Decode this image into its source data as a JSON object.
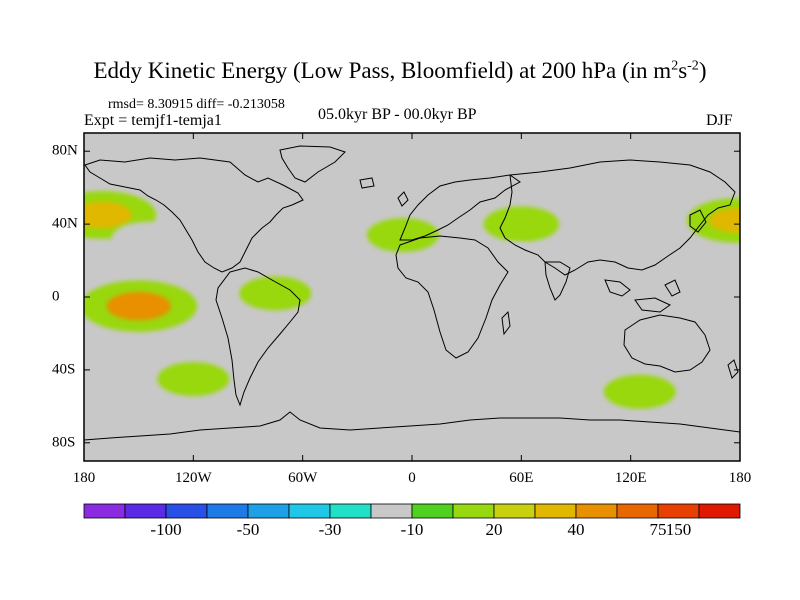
{
  "figure": {
    "title_main": "Eddy Kinetic Energy (Low Pass, Bloomfield) at 200 hPa (in m",
    "title_sup1": "2",
    "title_mid": "s",
    "title_sup2": "-2",
    "title_end": ")",
    "stats": "rmsd= 8.30915 diff= -0.213058",
    "experiment": "Expt = temjf1-temja1",
    "period": "05.0kyr BP - 00.0kyr BP",
    "season": "DJF"
  },
  "chart_data": {
    "type": "heatmap",
    "projection": "cylindrical-equidistant",
    "x_ticks": [
      "180",
      "120W",
      "60W",
      "0",
      "60E",
      "120E",
      "180"
    ],
    "y_ticks": [
      "80N",
      "40N",
      "0",
      "40S",
      "80S"
    ],
    "lon_range": [
      -180,
      180
    ],
    "lat_range": [
      -90,
      90
    ],
    "colorbar": {
      "colors": [
        "#8a2be2",
        "#5a2ae6",
        "#2850e6",
        "#1e7ae6",
        "#1ea0e6",
        "#1ec8e6",
        "#20e0c8",
        "#c8c8c8",
        "#50d020",
        "#98d810",
        "#c8d010",
        "#e0b800",
        "#e89000",
        "#e86800",
        "#e84000",
        "#e01800"
      ],
      "tick_labels": [
        "-100",
        "-50",
        "-30",
        "-10",
        "20",
        "40",
        "75",
        "150"
      ]
    },
    "anomalies": [
      {
        "name": "north-pacific-east-blob",
        "lon": 178,
        "lat": 42,
        "value": 35
      },
      {
        "name": "north-pacific-west-blob",
        "lon": -170,
        "lat": 45,
        "value": 40
      },
      {
        "name": "north-pacific-negative",
        "lon": -145,
        "lat": 32,
        "value": -20
      },
      {
        "name": "tropical-pacific-positive",
        "lon": -150,
        "lat": -5,
        "value": 45
      },
      {
        "name": "south-pacific-negative",
        "lon": -125,
        "lat": -30,
        "value": -12
      },
      {
        "name": "south-pacific-positive",
        "lon": -120,
        "lat": -45,
        "value": 20
      },
      {
        "name": "south-america-positive",
        "lon": -75,
        "lat": 2,
        "value": 20
      },
      {
        "name": "north-atlantic-negative",
        "lon": -20,
        "lat": 62,
        "value": -12
      },
      {
        "name": "africa-positive",
        "lon": -5,
        "lat": 34,
        "value": 20
      },
      {
        "name": "asia-positive",
        "lon": 60,
        "lat": 40,
        "value": 22
      },
      {
        "name": "arabia-negative",
        "lon": 55,
        "lat": 22,
        "value": -12
      },
      {
        "name": "australia-west-negative",
        "lon": 105,
        "lat": -35,
        "value": -12
      },
      {
        "name": "south-indian-positive",
        "lon": 125,
        "lat": -52,
        "value": 20
      }
    ]
  }
}
